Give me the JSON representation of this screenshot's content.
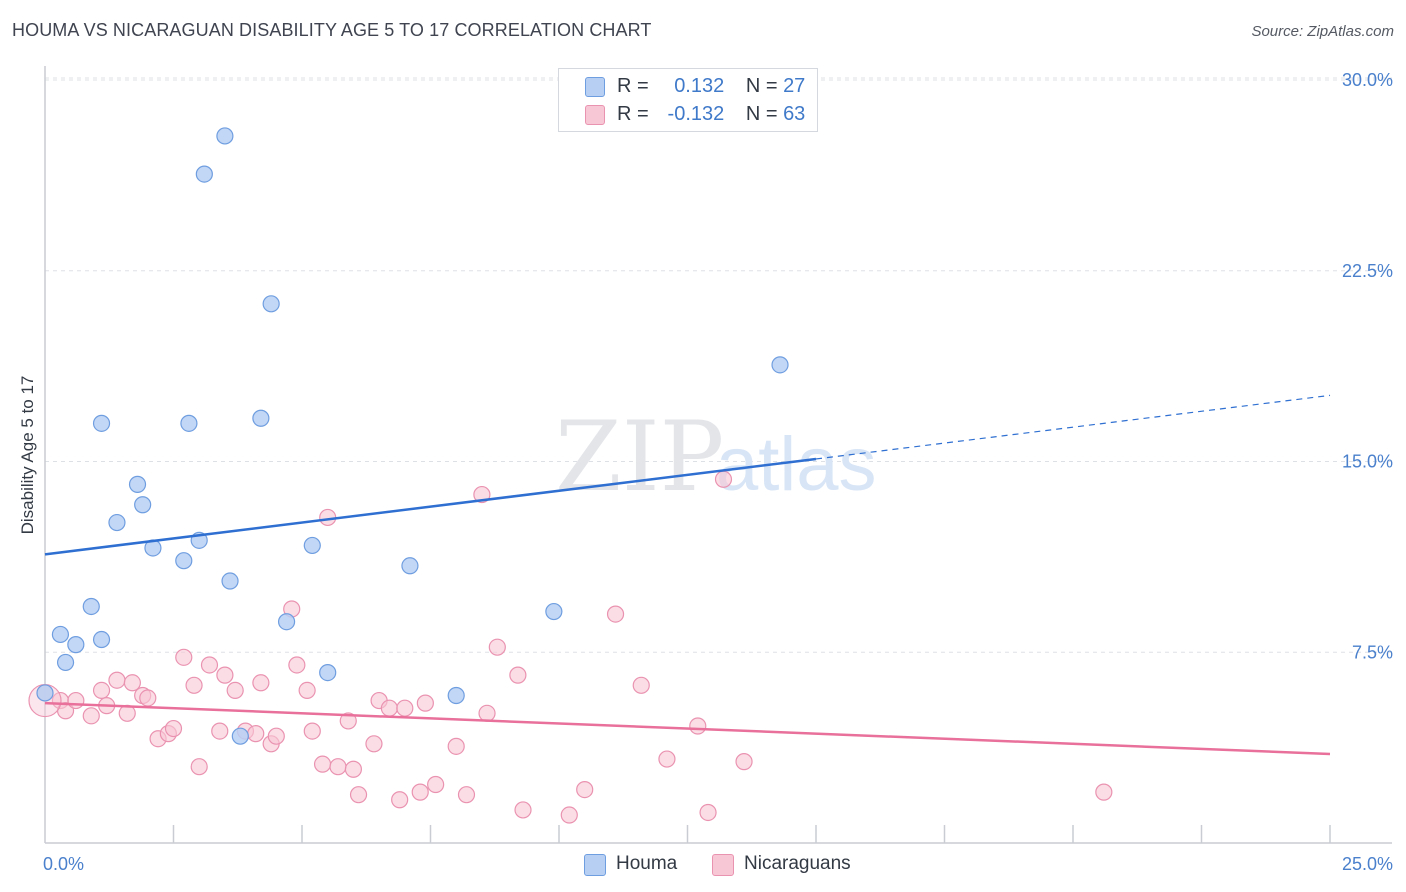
{
  "header": {
    "title": "HOUMA VS NICARAGUAN DISABILITY AGE 5 TO 17 CORRELATION CHART",
    "source": "Source: ZipAtlas.com"
  },
  "watermark": {
    "zip": "ZIP",
    "atlas": "atlas"
  },
  "legend": {
    "r_label": "R =",
    "n_label": "N =",
    "series": [
      {
        "name": "Houma",
        "r": "0.132",
        "n": "27"
      },
      {
        "name": "Nicaraguans",
        "r": "-0.132",
        "n": "63"
      }
    ]
  },
  "colors": {
    "houma_fill": "#b7cff3",
    "houma_stroke": "#6f9ee0",
    "houma_line": "#2e6fd1",
    "nic_fill": "#f8c7d6",
    "nic_stroke": "#ea93b0",
    "nic_line": "#e8709a",
    "axis_label": "#4a80cc",
    "grid": "#dde0e5"
  },
  "chart_data": {
    "type": "scatter",
    "title": "HOUMA VS NICARAGUAN DISABILITY AGE 5 TO 17 CORRELATION CHART",
    "xlabel": "",
    "ylabel": "Disability Age 5 to 17",
    "xlim": [
      0,
      25
    ],
    "ylim": [
      0,
      30
    ],
    "y_ticks": [
      {
        "value": 7.5,
        "label": "7.5%"
      },
      {
        "value": 15,
        "label": "15.0%"
      },
      {
        "value": 22.5,
        "label": "22.5%"
      },
      {
        "value": 30,
        "label": "30.0%"
      }
    ],
    "x_tick_labels": [
      {
        "value": 0,
        "label": "0.0%"
      },
      {
        "value": 25,
        "label": "25.0%"
      }
    ],
    "grid": true,
    "legend_position": "top-center",
    "series": [
      {
        "name": "Houma",
        "r": 0.132,
        "n": 27,
        "points": [
          [
            0.0,
            5.9
          ],
          [
            0.3,
            8.2
          ],
          [
            0.6,
            7.8
          ],
          [
            0.4,
            7.1
          ],
          [
            0.9,
            9.3
          ],
          [
            1.1,
            8.0
          ],
          [
            1.4,
            12.6
          ],
          [
            1.1,
            16.5
          ],
          [
            1.8,
            14.1
          ],
          [
            1.9,
            13.3
          ],
          [
            2.1,
            11.6
          ],
          [
            2.7,
            11.1
          ],
          [
            2.8,
            16.5
          ],
          [
            3.0,
            11.9
          ],
          [
            3.1,
            26.3
          ],
          [
            3.5,
            27.8
          ],
          [
            3.6,
            10.3
          ],
          [
            3.8,
            4.2
          ],
          [
            4.2,
            16.7
          ],
          [
            4.4,
            21.2
          ],
          [
            4.7,
            8.7
          ],
          [
            5.2,
            11.7
          ],
          [
            5.5,
            6.7
          ],
          [
            7.1,
            10.9
          ],
          [
            8.0,
            5.8
          ],
          [
            9.9,
            9.1
          ],
          [
            14.3,
            18.8
          ]
        ],
        "trend": {
          "x0": 0,
          "y0": 11.35,
          "x1": 15.0,
          "y1": 15.1,
          "dashed_to_x": 25,
          "dashed_to_y": 17.6
        }
      },
      {
        "name": "Nicaraguans",
        "r": -0.132,
        "n": 63,
        "points": [
          [
            0.0,
            5.9
          ],
          [
            0.3,
            5.6
          ],
          [
            0.4,
            5.2
          ],
          [
            0.6,
            5.6
          ],
          [
            0.9,
            5.0
          ],
          [
            1.1,
            6.0
          ],
          [
            1.2,
            5.4
          ],
          [
            1.4,
            6.4
          ],
          [
            1.6,
            5.1
          ],
          [
            1.7,
            6.3
          ],
          [
            1.9,
            5.8
          ],
          [
            2.0,
            5.7
          ],
          [
            2.2,
            4.1
          ],
          [
            2.4,
            4.3
          ],
          [
            2.5,
            4.5
          ],
          [
            2.7,
            7.3
          ],
          [
            2.9,
            6.2
          ],
          [
            3.0,
            3.0
          ],
          [
            3.2,
            7.0
          ],
          [
            3.4,
            4.4
          ],
          [
            3.5,
            6.6
          ],
          [
            3.7,
            6.0
          ],
          [
            3.9,
            4.4
          ],
          [
            4.1,
            4.3
          ],
          [
            4.2,
            6.3
          ],
          [
            4.4,
            3.9
          ],
          [
            4.5,
            4.2
          ],
          [
            4.8,
            9.2
          ],
          [
            4.9,
            7.0
          ],
          [
            5.1,
            6.0
          ],
          [
            5.2,
            4.4
          ],
          [
            5.4,
            3.1
          ],
          [
            5.5,
            12.8
          ],
          [
            5.7,
            3.0
          ],
          [
            5.9,
            4.8
          ],
          [
            6.0,
            2.9
          ],
          [
            6.1,
            1.9
          ],
          [
            6.4,
            3.9
          ],
          [
            6.5,
            5.6
          ],
          [
            6.7,
            5.3
          ],
          [
            6.9,
            1.7
          ],
          [
            7.0,
            5.3
          ],
          [
            7.3,
            2.0
          ],
          [
            7.4,
            5.5
          ],
          [
            7.6,
            2.3
          ],
          [
            8.0,
            3.8
          ],
          [
            8.2,
            1.9
          ],
          [
            8.5,
            13.7
          ],
          [
            8.6,
            5.1
          ],
          [
            8.8,
            7.7
          ],
          [
            9.2,
            6.6
          ],
          [
            9.3,
            1.3
          ],
          [
            10.2,
            1.1
          ],
          [
            10.5,
            2.1
          ],
          [
            11.1,
            9.0
          ],
          [
            11.6,
            6.2
          ],
          [
            12.1,
            3.3
          ],
          [
            12.7,
            4.6
          ],
          [
            12.9,
            1.2
          ],
          [
            13.2,
            14.3
          ],
          [
            13.6,
            3.2
          ],
          [
            20.6,
            2.0
          ],
          [
            0.0,
            5.6
          ]
        ],
        "trend": {
          "x0": 0,
          "y0": 5.5,
          "x1": 25,
          "y1": 3.5
        }
      }
    ]
  }
}
